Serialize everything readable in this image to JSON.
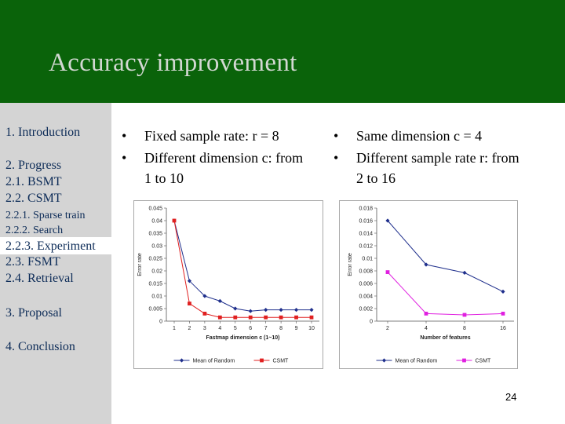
{
  "title": "Accuracy improvement",
  "sidebar": {
    "items": [
      {
        "label": "1. Introduction"
      },
      {
        "label": "2. Progress"
      },
      {
        "label": "2.1. BSMT"
      },
      {
        "label": "2.2. CSMT"
      },
      {
        "label": "2.2.1. Sparse train"
      },
      {
        "label": "2.2.2. Search"
      },
      {
        "label": "2.2.3. Experiment"
      },
      {
        "label": "2.3. FSMT"
      },
      {
        "label": "2.4. Retrieval"
      },
      {
        "label": "3. Proposal"
      },
      {
        "label": "4. Conclusion"
      }
    ],
    "selected": "2.2.3. Experiment"
  },
  "left_bullets": [
    "Fixed sample rate: r = 8",
    "Different dimension c: from",
    "1 to 10"
  ],
  "right_bullets": [
    "Same dimension c = 4",
    "Different sample rate r:  from",
    "2 to 16"
  ],
  "bullet_glyph": "•",
  "page_number": "24",
  "colors": {
    "header": "#0a630a",
    "title": "#d2d8d2",
    "sidebar": "#d4d4d4",
    "nav_text": "#0c2b57",
    "random": "#1f2f8c",
    "csmt_left": "#e02020",
    "csmt_right": "#e020e0"
  },
  "chart_data": [
    {
      "type": "line",
      "ylabel": "Error rate",
      "xlabel": "Fastmap dimension c (1~10)",
      "x": [
        1,
        2,
        3,
        4,
        5,
        6,
        7,
        8,
        9,
        10
      ],
      "xticks": [
        "1",
        "2",
        "3",
        "4",
        "5",
        "6",
        "7",
        "8",
        "9",
        "10"
      ],
      "ylim": [
        0,
        0.045
      ],
      "yticks": [
        "0",
        "0.005",
        "0.01",
        "0.015",
        "0.02",
        "0.025",
        "0.03",
        "0.035",
        "0.04",
        "0.045"
      ],
      "series": [
        {
          "name": "Mean of Random",
          "values": [
            0.04,
            0.016,
            0.01,
            0.008,
            0.005,
            0.004,
            0.0045,
            0.0045,
            0.0045,
            0.0045
          ]
        },
        {
          "name": "CSMT",
          "values": [
            0.04,
            0.007,
            0.003,
            0.0015,
            0.0015,
            0.0015,
            0.0015,
            0.0015,
            0.0015,
            0.0015
          ]
        }
      ],
      "legend": "bottom",
      "grid": false
    },
    {
      "type": "line",
      "ylabel": "Error rate",
      "xlabel": "Number of features",
      "x": [
        2,
        4,
        8,
        16
      ],
      "xticks": [
        "2",
        "4",
        "8",
        "16"
      ],
      "ylim": [
        0,
        0.018
      ],
      "yticks": [
        "0",
        "0.002",
        "0.004",
        "0.006",
        "0.008",
        "0.01",
        "0.012",
        "0.014",
        "0.016",
        "0.018"
      ],
      "series": [
        {
          "name": "Mean of Random",
          "values": [
            0.016,
            0.009,
            0.0077,
            0.0047
          ]
        },
        {
          "name": "CSMT",
          "values": [
            0.0078,
            0.0012,
            0.001,
            0.0012
          ]
        }
      ],
      "legend": "bottom",
      "grid": false
    }
  ]
}
